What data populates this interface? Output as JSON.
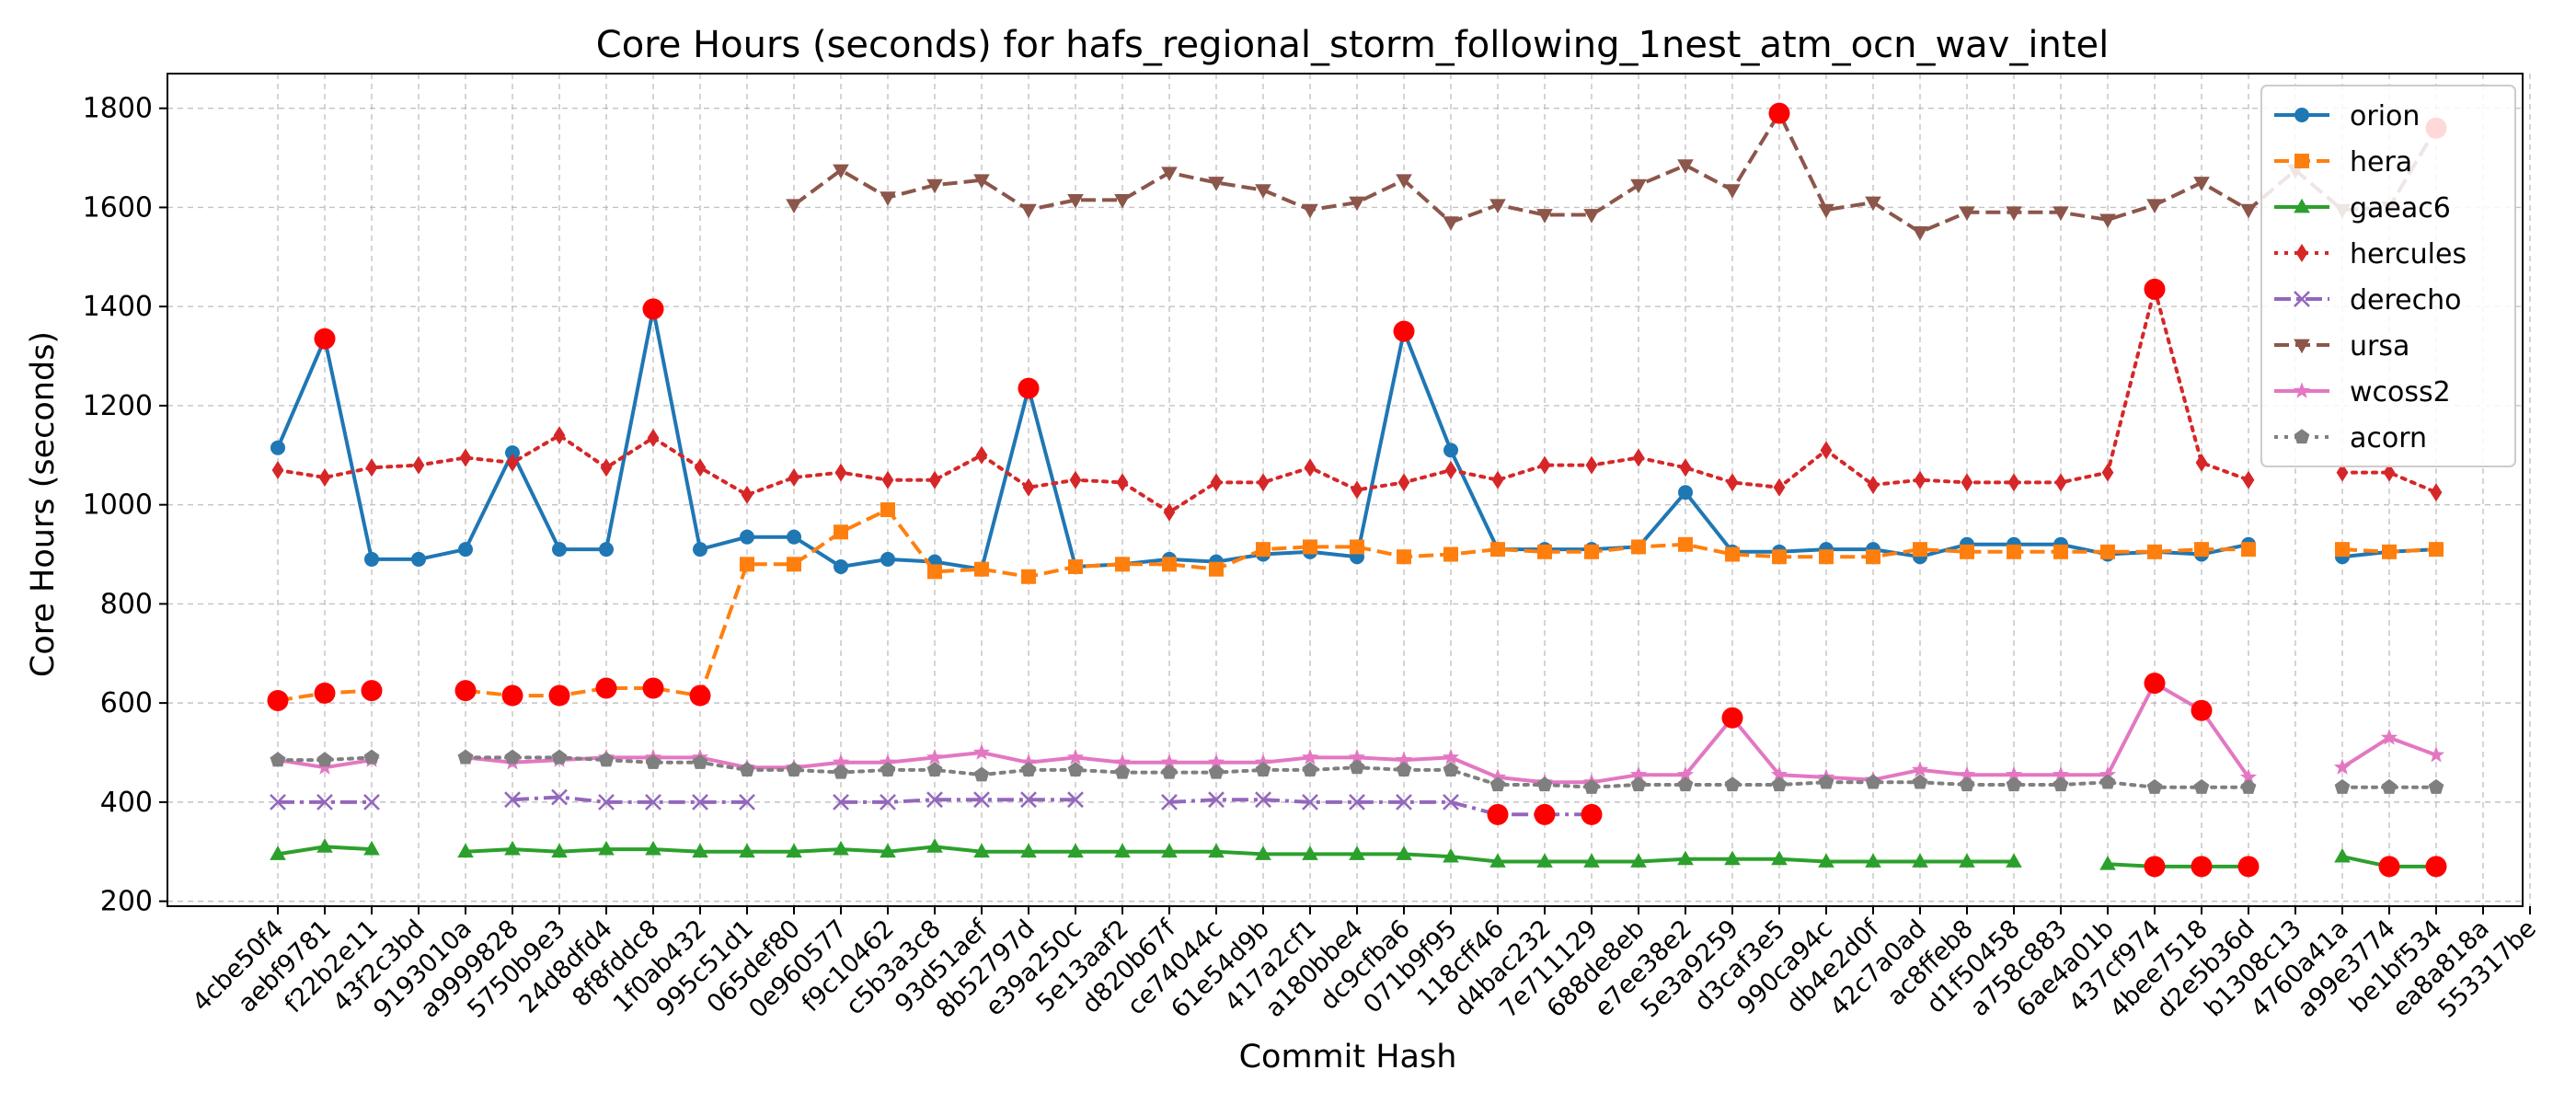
{
  "chart_data": {
    "type": "line",
    "title": "Core Hours (seconds) for hafs_regional_storm_following_1nest_atm_ocn_wav_intel",
    "xlabel": "Commit Hash",
    "ylabel": "Core Hours (seconds)",
    "ylim": [
      190,
      1870
    ],
    "yticks": [
      200,
      400,
      600,
      800,
      1000,
      1200,
      1400,
      1600,
      1800
    ],
    "grid": true,
    "legend_position": "top-right",
    "categories": [
      "4cbe50f4",
      "aebf9781",
      "f22b2e11",
      "43f2c3bd",
      "9193010a",
      "a9999828",
      "5750b9e3",
      "24d8dfd4",
      "8f8fddc8",
      "1f0ab432",
      "995c51d1",
      "065def80",
      "0e960577",
      "f9c10462",
      "c5b3a3c8",
      "93d51aef",
      "8b52797d",
      "e39a250c",
      "5e13aaf2",
      "d820b67f",
      "ce74044c",
      "61e54d9b",
      "417a2cf1",
      "a180bbe4",
      "dc9cfba6",
      "071b9f95",
      "118cff46",
      "d4bac232",
      "7e711129",
      "688de8eb",
      "e7ee38e2",
      "5e3a9259",
      "d3caf3e5",
      "990ca94c",
      "db4e2d0f",
      "42c7a0ad",
      "ac8ffeb8",
      "d1f50458",
      "a758c883",
      "6ae4a01b",
      "437cf974",
      "4bee7518",
      "d2e5b36d",
      "b1308c13",
      "4760a41a",
      "a99e3774",
      "be1bf534",
      "ea8a818a",
      "553317be"
    ],
    "series": [
      {
        "name": "orion",
        "color": "#1f77b4",
        "marker": "circle",
        "line": "solid",
        "values": [
          1115,
          1335,
          890,
          890,
          910,
          1105,
          910,
          910,
          1395,
          910,
          935,
          935,
          875,
          890,
          885,
          870,
          1235,
          875,
          880,
          890,
          885,
          900,
          905,
          895,
          1350,
          1110,
          910,
          910,
          910,
          915,
          1025,
          905,
          905,
          910,
          910,
          895,
          920,
          920,
          920,
          900,
          905,
          900,
          920,
          null,
          895,
          905,
          910,
          null,
          null
        ]
      },
      {
        "name": "hera",
        "color": "#ff7f0e",
        "marker": "square",
        "line": "dashed",
        "values": [
          605,
          620,
          625,
          null,
          625,
          615,
          615,
          630,
          630,
          615,
          880,
          880,
          945,
          990,
          865,
          870,
          855,
          875,
          880,
          880,
          870,
          910,
          915,
          915,
          895,
          900,
          910,
          905,
          905,
          915,
          920,
          900,
          895,
          895,
          895,
          910,
          905,
          905,
          905,
          905,
          905,
          910,
          910,
          null,
          910,
          905,
          910,
          null,
          null
        ]
      },
      {
        "name": "gaeac6",
        "color": "#2ca02c",
        "marker": "triangle-up",
        "line": "solid",
        "values": [
          295,
          310,
          305,
          null,
          300,
          305,
          300,
          305,
          305,
          300,
          300,
          300,
          305,
          300,
          310,
          300,
          300,
          300,
          300,
          300,
          300,
          295,
          295,
          295,
          295,
          290,
          280,
          280,
          280,
          280,
          285,
          285,
          285,
          280,
          280,
          280,
          280,
          280,
          null,
          275,
          270,
          270,
          270,
          null,
          290,
          270,
          270,
          null,
          null
        ]
      },
      {
        "name": "hercules",
        "color": "#d62728",
        "marker": "diamond",
        "line": "dotted",
        "values": [
          1070,
          1055,
          1075,
          1080,
          1095,
          1085,
          1140,
          1075,
          1135,
          1075,
          1020,
          1055,
          1065,
          1050,
          1050,
          1100,
          1035,
          1050,
          1045,
          985,
          1045,
          1045,
          1075,
          1030,
          1045,
          1070,
          1050,
          1080,
          1080,
          1095,
          1075,
          1045,
          1035,
          1110,
          1040,
          1050,
          1045,
          1045,
          1045,
          1065,
          1435,
          1085,
          1050,
          null,
          1065,
          1065,
          1025,
          null,
          null
        ]
      },
      {
        "name": "derecho",
        "color": "#9467bd",
        "marker": "x",
        "line": "dashdot",
        "values": [
          400,
          400,
          400,
          null,
          null,
          405,
          410,
          400,
          400,
          400,
          400,
          null,
          400,
          400,
          405,
          405,
          405,
          405,
          null,
          400,
          405,
          405,
          400,
          400,
          400,
          400,
          375,
          375,
          375,
          null,
          null,
          null,
          null,
          null,
          null,
          null,
          null,
          null,
          null,
          null,
          null,
          null,
          null,
          null,
          null,
          null,
          null,
          null,
          null
        ]
      },
      {
        "name": "ursa",
        "color": "#8c564b",
        "marker": "triangle-down",
        "line": "dashed",
        "values": [
          null,
          null,
          null,
          null,
          null,
          null,
          null,
          null,
          null,
          null,
          null,
          1605,
          1675,
          1620,
          1645,
          1655,
          1595,
          1615,
          1615,
          1670,
          1650,
          1635,
          1595,
          1610,
          1655,
          1570,
          1605,
          1585,
          1585,
          1645,
          1685,
          1635,
          1790,
          1595,
          1610,
          1550,
          1590,
          1590,
          1590,
          1575,
          1605,
          1650,
          1595,
          1675,
          1595,
          1600,
          1760,
          null,
          null
        ]
      },
      {
        "name": "wcoss2",
        "color": "#e377c2",
        "marker": "star",
        "line": "solid",
        "values": [
          485,
          470,
          485,
          null,
          490,
          480,
          485,
          490,
          490,
          490,
          470,
          470,
          480,
          480,
          490,
          500,
          480,
          490,
          480,
          480,
          480,
          480,
          490,
          490,
          485,
          490,
          450,
          440,
          440,
          455,
          455,
          570,
          455,
          450,
          445,
          465,
          455,
          455,
          455,
          455,
          640,
          585,
          450,
          null,
          470,
          530,
          495,
          null,
          null
        ]
      },
      {
        "name": "acorn",
        "color": "#7f7f7f",
        "marker": "pentagon",
        "line": "dotted",
        "values": [
          485,
          485,
          490,
          null,
          490,
          490,
          490,
          485,
          480,
          480,
          465,
          465,
          460,
          465,
          465,
          455,
          465,
          465,
          460,
          460,
          460,
          465,
          465,
          470,
          465,
          465,
          435,
          435,
          430,
          435,
          435,
          435,
          435,
          440,
          440,
          440,
          435,
          435,
          435,
          440,
          430,
          430,
          430,
          null,
          430,
          430,
          430,
          null,
          null
        ]
      }
    ],
    "highlights": [
      {
        "series": "orion",
        "index": 1
      },
      {
        "series": "orion",
        "index": 8
      },
      {
        "series": "orion",
        "index": 16
      },
      {
        "series": "orion",
        "index": 24
      },
      {
        "series": "hera",
        "index": 0
      },
      {
        "series": "hera",
        "index": 1
      },
      {
        "series": "hera",
        "index": 2
      },
      {
        "series": "hera",
        "index": 4
      },
      {
        "series": "hera",
        "index": 5
      },
      {
        "series": "hera",
        "index": 6
      },
      {
        "series": "hera",
        "index": 7
      },
      {
        "series": "hera",
        "index": 8
      },
      {
        "series": "hera",
        "index": 9
      },
      {
        "series": "gaeac6",
        "index": 40
      },
      {
        "series": "gaeac6",
        "index": 41
      },
      {
        "series": "gaeac6",
        "index": 42
      },
      {
        "series": "gaeac6",
        "index": 45
      },
      {
        "series": "gaeac6",
        "index": 46
      },
      {
        "series": "hercules",
        "index": 40
      },
      {
        "series": "derecho",
        "index": 26
      },
      {
        "series": "derecho",
        "index": 27
      },
      {
        "series": "derecho",
        "index": 28
      },
      {
        "series": "ursa",
        "index": 32
      },
      {
        "series": "ursa",
        "index": 46
      },
      {
        "series": "wcoss2",
        "index": 31
      },
      {
        "series": "wcoss2",
        "index": 40
      },
      {
        "series": "wcoss2",
        "index": 41
      }
    ],
    "highlight_color": "#ff0000"
  }
}
